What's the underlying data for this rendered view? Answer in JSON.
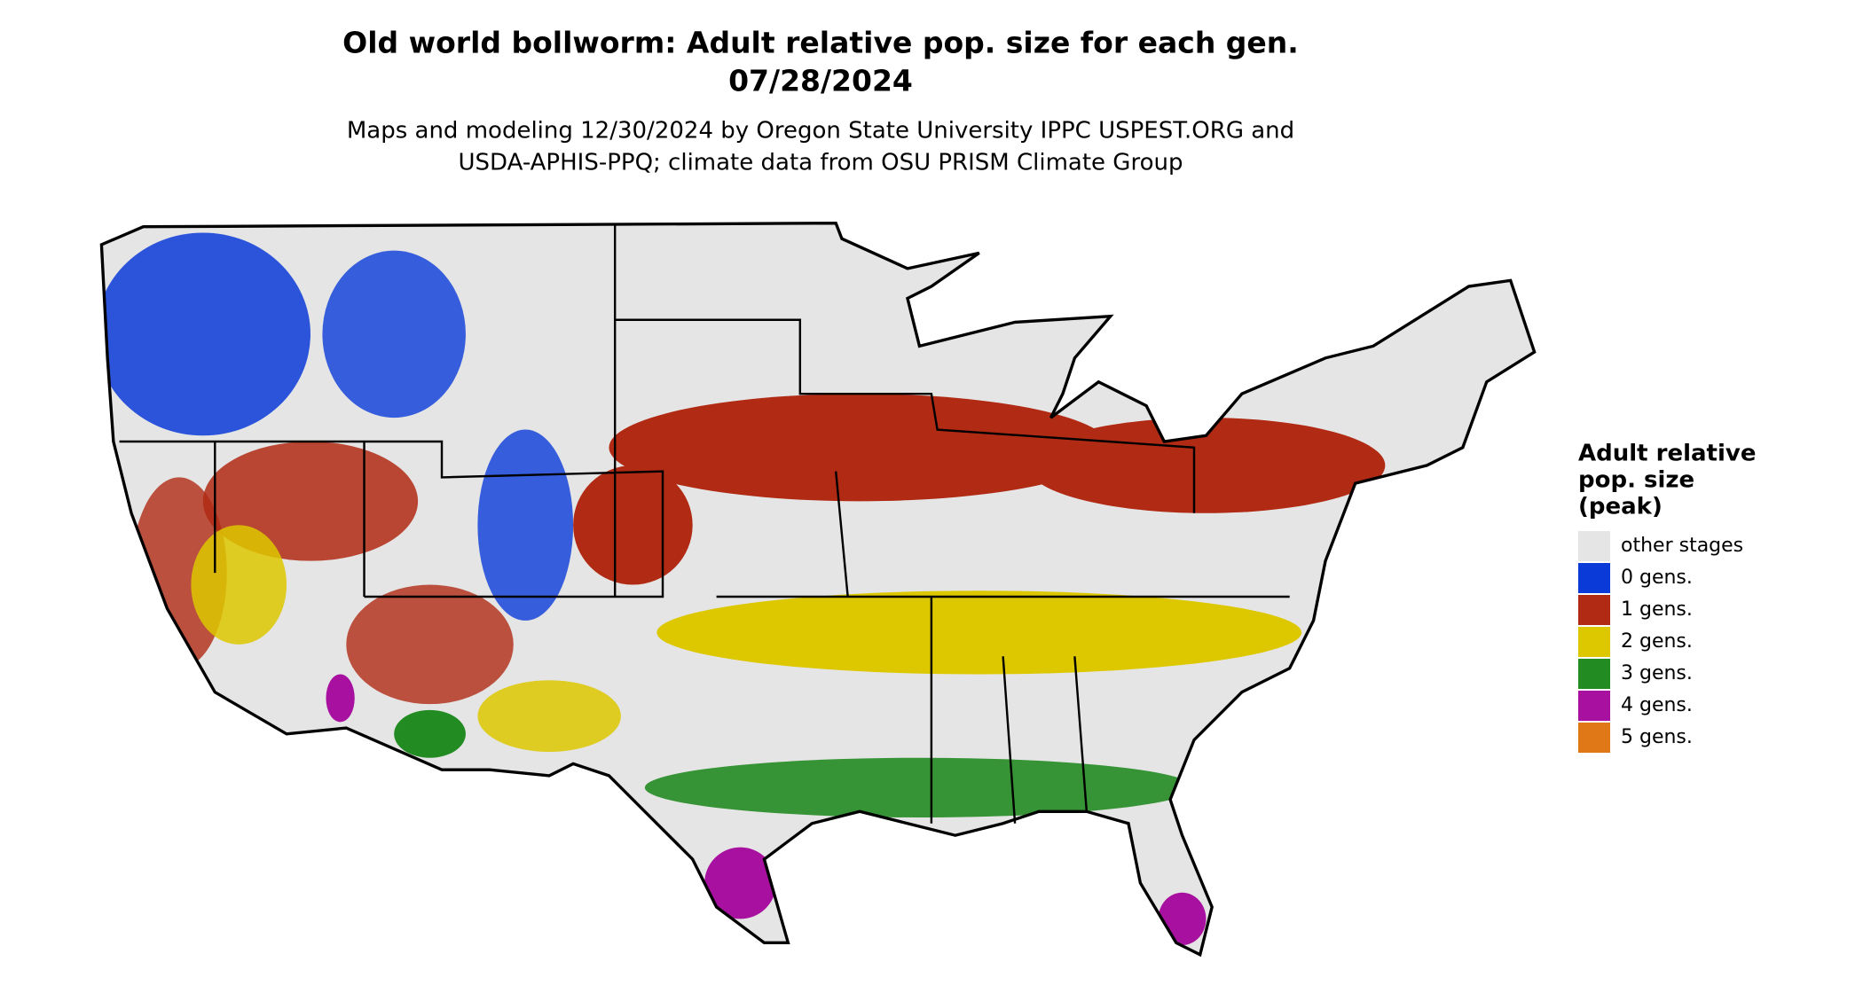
{
  "header": {
    "title": [
      "Old world bollworm: Adult relative pop. size for each gen.",
      "07/28/2024"
    ],
    "subtitle": [
      "Maps and modeling 12/30/2024 by Oregon State University IPPC USPEST.ORG and",
      "USDA-APHIS-PPQ; climate data from OSU PRISM Climate Group"
    ]
  },
  "legend": {
    "title": [
      "Adult relative",
      "pop. size",
      "(peak)"
    ],
    "items": [
      {
        "label": "other stages",
        "color": "#e5e5e5"
      },
      {
        "label": "0 gens.",
        "color": "#0a3bd8"
      },
      {
        "label": "1 gens.",
        "color": "#b02a14"
      },
      {
        "label": "2 gens.",
        "color": "#ddc800"
      },
      {
        "label": "3 gens.",
        "color": "#228b22"
      },
      {
        "label": "4 gens.",
        "color": "#a8109f"
      },
      {
        "label": "5 gens.",
        "color": "#e07818"
      }
    ]
  }
}
